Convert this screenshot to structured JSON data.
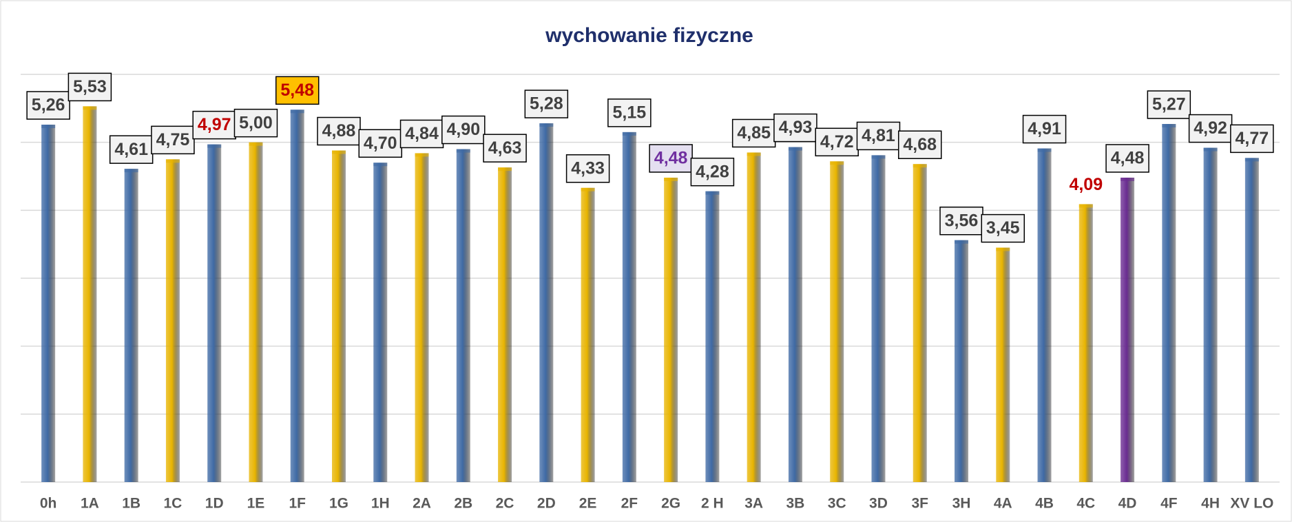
{
  "chart_data": {
    "type": "bar",
    "title": "wychowanie fizyczne",
    "categories": [
      "0h",
      "1A",
      "1B",
      "1C",
      "1D",
      "1E",
      "1F",
      "1G",
      "1H",
      "2A",
      "2B",
      "2C",
      "2D",
      "2E",
      "2F",
      "2G",
      "2 H",
      "3A",
      "3B",
      "3C",
      "3D",
      "3F",
      "3H",
      "4A",
      "4B",
      "4C",
      "4D",
      "4F",
      "4H",
      "XV LO"
    ],
    "values": [
      5.26,
      5.53,
      4.61,
      4.75,
      4.97,
      5.0,
      5.48,
      4.88,
      4.7,
      4.84,
      4.9,
      4.63,
      5.28,
      4.33,
      5.15,
      4.48,
      4.28,
      4.85,
      4.93,
      4.72,
      4.81,
      4.68,
      3.56,
      3.45,
      4.91,
      4.09,
      4.48,
      5.27,
      4.92,
      4.77
    ],
    "value_labels": [
      "5,26",
      "5,53",
      "4,61",
      "4,75",
      "4,97",
      "5,00",
      "5,48",
      "4,88",
      "4,70",
      "4,84",
      "4,90",
      "4,63",
      "5,28",
      "4,33",
      "5,15",
      "4,48",
      "4,28",
      "4,85",
      "4,93",
      "4,72",
      "4,81",
      "4,68",
      "3,56",
      "3,45",
      "4,91",
      "4,09",
      "4,48",
      "5,27",
      "4,92",
      "4,77"
    ],
    "colors": [
      "#3f6aa5",
      "#e8b400",
      "#3f6aa5",
      "#e8b400",
      "#3f6aa5",
      "#e8b400",
      "#3f6aa5",
      "#e8b400",
      "#3f6aa5",
      "#e8b400",
      "#3f6aa5",
      "#e8b400",
      "#3f6aa5",
      "#e8b400",
      "#3f6aa5",
      "#e8b400",
      "#3f6aa5",
      "#e8b400",
      "#3f6aa5",
      "#e8b400",
      "#3f6aa5",
      "#e8b400",
      "#3f6aa5",
      "#e8b400",
      "#3f6aa5",
      "#e8b400",
      "#6a2c91",
      "#3f6aa5",
      "#3f6aa5",
      "#3f6aa5"
    ],
    "label_colors": [
      "#404040",
      "#404040",
      "#404040",
      "#404040",
      "#c00000",
      "#404040",
      "#c00000",
      "#404040",
      "#404040",
      "#404040",
      "#404040",
      "#404040",
      "#404040",
      "#404040",
      "#404040",
      "#7030a0",
      "#404040",
      "#404040",
      "#404040",
      "#404040",
      "#404040",
      "#404040",
      "#404040",
      "#404040",
      "#404040",
      "#c00000",
      "#404040",
      "#404040",
      "#404040",
      "#404040"
    ],
    "label_fills": [
      "#f2f2f2",
      "#f2f2f2",
      "#f2f2f2",
      "#f2f2f2",
      "#f2f2f2",
      "#f2f2f2",
      "#ffc000",
      "#f2f2f2",
      "#f2f2f2",
      "#f2f2f2",
      "#f2f2f2",
      "#f2f2f2",
      "#f2f2f2",
      "#f2f2f2",
      "#f2f2f2",
      "#e4dff0",
      "#f2f2f2",
      "#f2f2f2",
      "#f2f2f2",
      "#f2f2f2",
      "#f2f2f2",
      "#f2f2f2",
      "#f2f2f2",
      "#f2f2f2",
      "#f2f2f2",
      "none",
      "#f2f2f2",
      "#f2f2f2",
      "#f2f2f2",
      "#f2f2f2"
    ],
    "ylim": [
      0,
      6
    ],
    "yticks": [
      0,
      1,
      2,
      3,
      4,
      5,
      6
    ],
    "grid": true,
    "ytick_labels": false
  }
}
